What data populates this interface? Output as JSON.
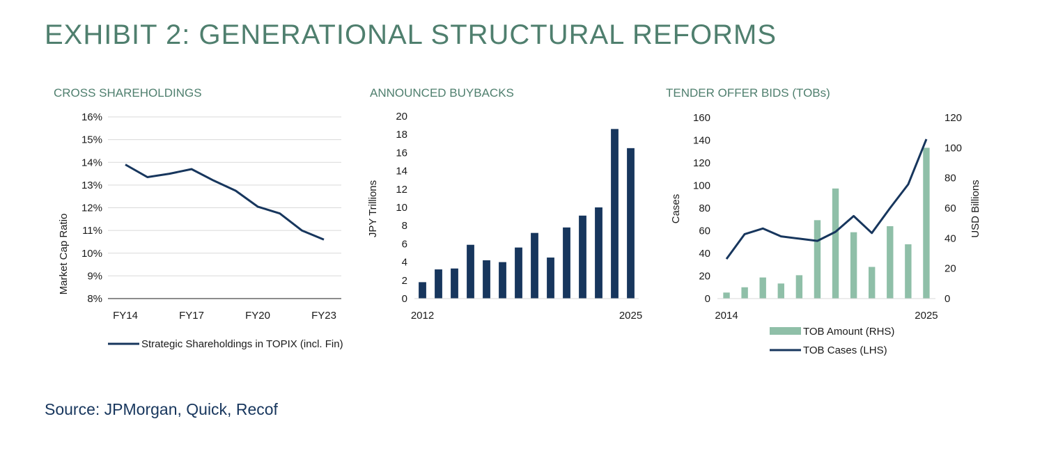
{
  "title": "EXHIBIT 2: GENERATIONAL STRUCTURAL REFORMS",
  "source": "Source: JPMorgan, Quick, Recof",
  "colors": {
    "navy": "#17365d",
    "green": "#8fbfa8",
    "title_green": "#4f7f6e",
    "grid": "#d9d9d9"
  },
  "chart_data": [
    {
      "type": "line",
      "title": "CROSS SHAREHOLDINGS",
      "ylabel": "Market Cap Ratio",
      "ylim": [
        8,
        16
      ],
      "yticks": [
        "8%",
        "9%",
        "10%",
        "11%",
        "12%",
        "13%",
        "14%",
        "15%",
        "16%"
      ],
      "xticks": [
        "FY14",
        "FY17",
        "FY20",
        "FY23"
      ],
      "xlim": [
        2014,
        2023
      ],
      "grid": true,
      "legend_position": "bottom",
      "series": [
        {
          "name": "Strategic Shareholdings in TOPIX (incl. Fin)",
          "x": [
            2014,
            2015,
            2016,
            2017,
            2018,
            2019,
            2020,
            2021,
            2022,
            2023
          ],
          "values": [
            13.9,
            13.35,
            13.5,
            13.7,
            13.2,
            12.75,
            12.05,
            11.75,
            11.0,
            10.6
          ]
        }
      ]
    },
    {
      "type": "bar",
      "title": "ANNOUNCED BUYBACKS",
      "ylabel": "JPY Trillions",
      "ylim": [
        0,
        20
      ],
      "yticks": [
        "0",
        "2",
        "4",
        "6",
        "8",
        "10",
        "12",
        "14",
        "16",
        "18",
        "20"
      ],
      "xticks": [
        "2012",
        "2025"
      ],
      "categories": [
        "2012",
        "2013",
        "2014",
        "2015",
        "2016",
        "2017",
        "2018",
        "2019",
        "2020",
        "2021",
        "2022",
        "2023",
        "2024",
        "2025"
      ],
      "values": [
        1.8,
        3.2,
        3.3,
        5.9,
        4.2,
        4.0,
        5.6,
        7.2,
        4.5,
        7.8,
        9.1,
        10.0,
        18.6,
        16.5
      ]
    },
    {
      "type": "bar",
      "title": "TENDER OFFER BIDS (TOBs)",
      "ylabel": "Cases",
      "y2label": "USD Billions",
      "ylim": [
        0,
        160
      ],
      "y2lim": [
        0,
        120
      ],
      "yticks": [
        "0",
        "20",
        "40",
        "60",
        "80",
        "100",
        "120",
        "140",
        "160"
      ],
      "y2ticks": [
        "0",
        "20",
        "40",
        "60",
        "80",
        "100",
        "120"
      ],
      "xticks": [
        "2014",
        "2025"
      ],
      "legend_position": "bottom",
      "categories": [
        "2014",
        "2015",
        "2016",
        "2017",
        "2018",
        "2019",
        "2020",
        "2021",
        "2022",
        "2023",
        "2024",
        "2025"
      ],
      "series": [
        {
          "name": "TOB Amount (RHS)",
          "kind": "bar",
          "axis": "right",
          "values": [
            4,
            7.5,
            14,
            10,
            15.5,
            52,
            73,
            44,
            21,
            48,
            36,
            100
          ]
        },
        {
          "name": "TOB Cases (LHS)",
          "kind": "line",
          "axis": "left",
          "values": [
            35,
            57,
            62,
            55,
            53,
            51,
            59,
            73,
            58,
            80,
            101,
            141
          ]
        }
      ]
    }
  ]
}
